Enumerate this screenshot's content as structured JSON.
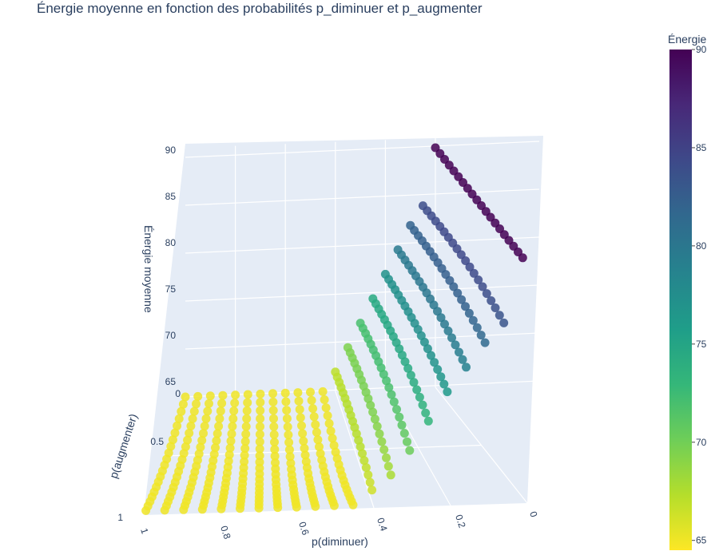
{
  "chart_data": {
    "type": "scatter",
    "title": "Énergie moyenne en fonction des probabilités p_diminuer et p_augmenter",
    "xlabel": "p(diminuer)",
    "ylabel": "p(augmenter)",
    "zlabel": "Énergie moyenne",
    "x_ticks": [
      "0",
      "0.2",
      "0.4",
      "0.6",
      "0.8",
      "1"
    ],
    "y_ticks": [
      "0",
      "0.5",
      "1"
    ],
    "z_ticks": [
      "65",
      "70",
      "75",
      "80",
      "85",
      "90"
    ],
    "xlim": [
      0,
      1
    ],
    "ylim": [
      0,
      1
    ],
    "zlim": [
      65,
      90
    ],
    "grid": true,
    "colorbar": {
      "title": "Énergie",
      "colorscale": "Viridis (reversed)",
      "range": [
        64.5,
        90
      ],
      "ticks": [
        "65",
        "70",
        "75",
        "80",
        "85",
        "90"
      ],
      "colors": [
        "#fde725",
        "#b5de2b",
        "#6ece58",
        "#35b779",
        "#1f9e89",
        "#26828e",
        "#31688e",
        "#3e4989",
        "#482878",
        "#440154"
      ]
    },
    "series": [
      {
        "note_rows": "rows of points at fixed p(diminuer)",
        "x": 0.0,
        "z_start": 90.0,
        "z_end": 90.0
      },
      {
        "x": 0.05,
        "z_start": 84.0,
        "z_end": 82.5
      },
      {
        "x": 0.1,
        "z_start": 82.0,
        "z_end": 80.5
      },
      {
        "x": 0.15,
        "z_start": 79.5,
        "z_end": 78.0
      },
      {
        "x": 0.2,
        "z_start": 77.0,
        "z_end": 75.5
      },
      {
        "x": 0.25,
        "z_start": 74.5,
        "z_end": 72.5
      },
      {
        "x": 0.3,
        "z_start": 72.0,
        "z_end": 69.5
      },
      {
        "x": 0.35,
        "z_start": 69.5,
        "z_end": 67.0
      },
      {
        "x": 0.4,
        "z_start": 67.0,
        "z_end": 65.5
      },
      {
        "x": 0.45,
        "z_start": 65.5,
        "z_end": 65.0
      },
      {
        "x": 0.5,
        "z_start": 65.0,
        "z_end": 65.0
      },
      {
        "x": 0.55,
        "z_start": 65.0,
        "z_end": 65.0
      },
      {
        "x": 0.6,
        "z_start": 65.0,
        "z_end": 65.0
      },
      {
        "x": 0.65,
        "z_start": 65.0,
        "z_end": 65.0
      },
      {
        "x": 0.7,
        "z_start": 65.0,
        "z_end": 65.0
      },
      {
        "x": 0.75,
        "z_start": 65.0,
        "z_end": 65.0
      },
      {
        "x": 0.8,
        "z_start": 65.0,
        "z_end": 65.0
      },
      {
        "x": 0.85,
        "z_start": 65.0,
        "z_end": 65.0
      },
      {
        "x": 0.9,
        "z_start": 65.0,
        "z_end": 65.0
      },
      {
        "x": 0.95,
        "z_start": 65.0,
        "z_end": 65.0
      },
      {
        "x": 1.0,
        "z_start": 65.0,
        "z_end": 65.0
      }
    ]
  }
}
